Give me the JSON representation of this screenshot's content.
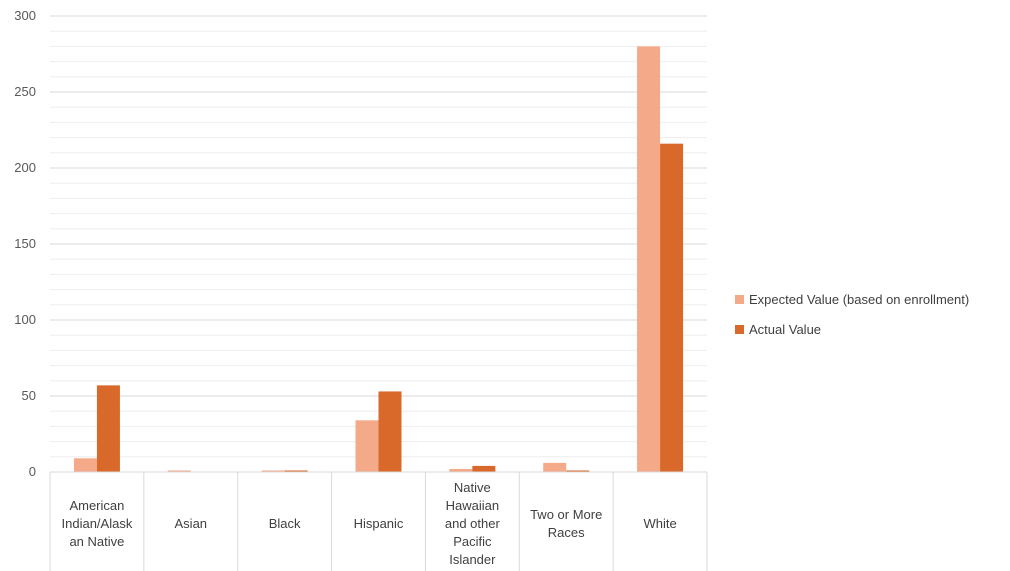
{
  "chart_data": {
    "type": "bar",
    "title": "",
    "xlabel": "",
    "ylabel": "",
    "ylim": [
      0,
      300
    ],
    "yticks": [
      0,
      50,
      100,
      150,
      200,
      250,
      300
    ],
    "minor_gridlines_per_major": 5,
    "grid": true,
    "legend_position": "right",
    "categories": [
      [
        "American",
        "Indian/Alask",
        "an Native"
      ],
      [
        "Asian"
      ],
      [
        "Black"
      ],
      [
        "Hispanic"
      ],
      [
        "Native",
        "Hawaiian",
        "and other",
        "Pacific",
        "Islander"
      ],
      [
        "Two or More",
        "Races"
      ],
      [
        "White"
      ]
    ],
    "series": [
      {
        "name": "Expected Value (based on enrollment)",
        "color": "#f4a989",
        "values": [
          9,
          1,
          1,
          34,
          2,
          6,
          280
        ]
      },
      {
        "name": "Actual Value",
        "color": "#d9692a",
        "values": [
          57,
          0,
          1,
          53,
          4,
          1,
          216
        ]
      }
    ]
  }
}
